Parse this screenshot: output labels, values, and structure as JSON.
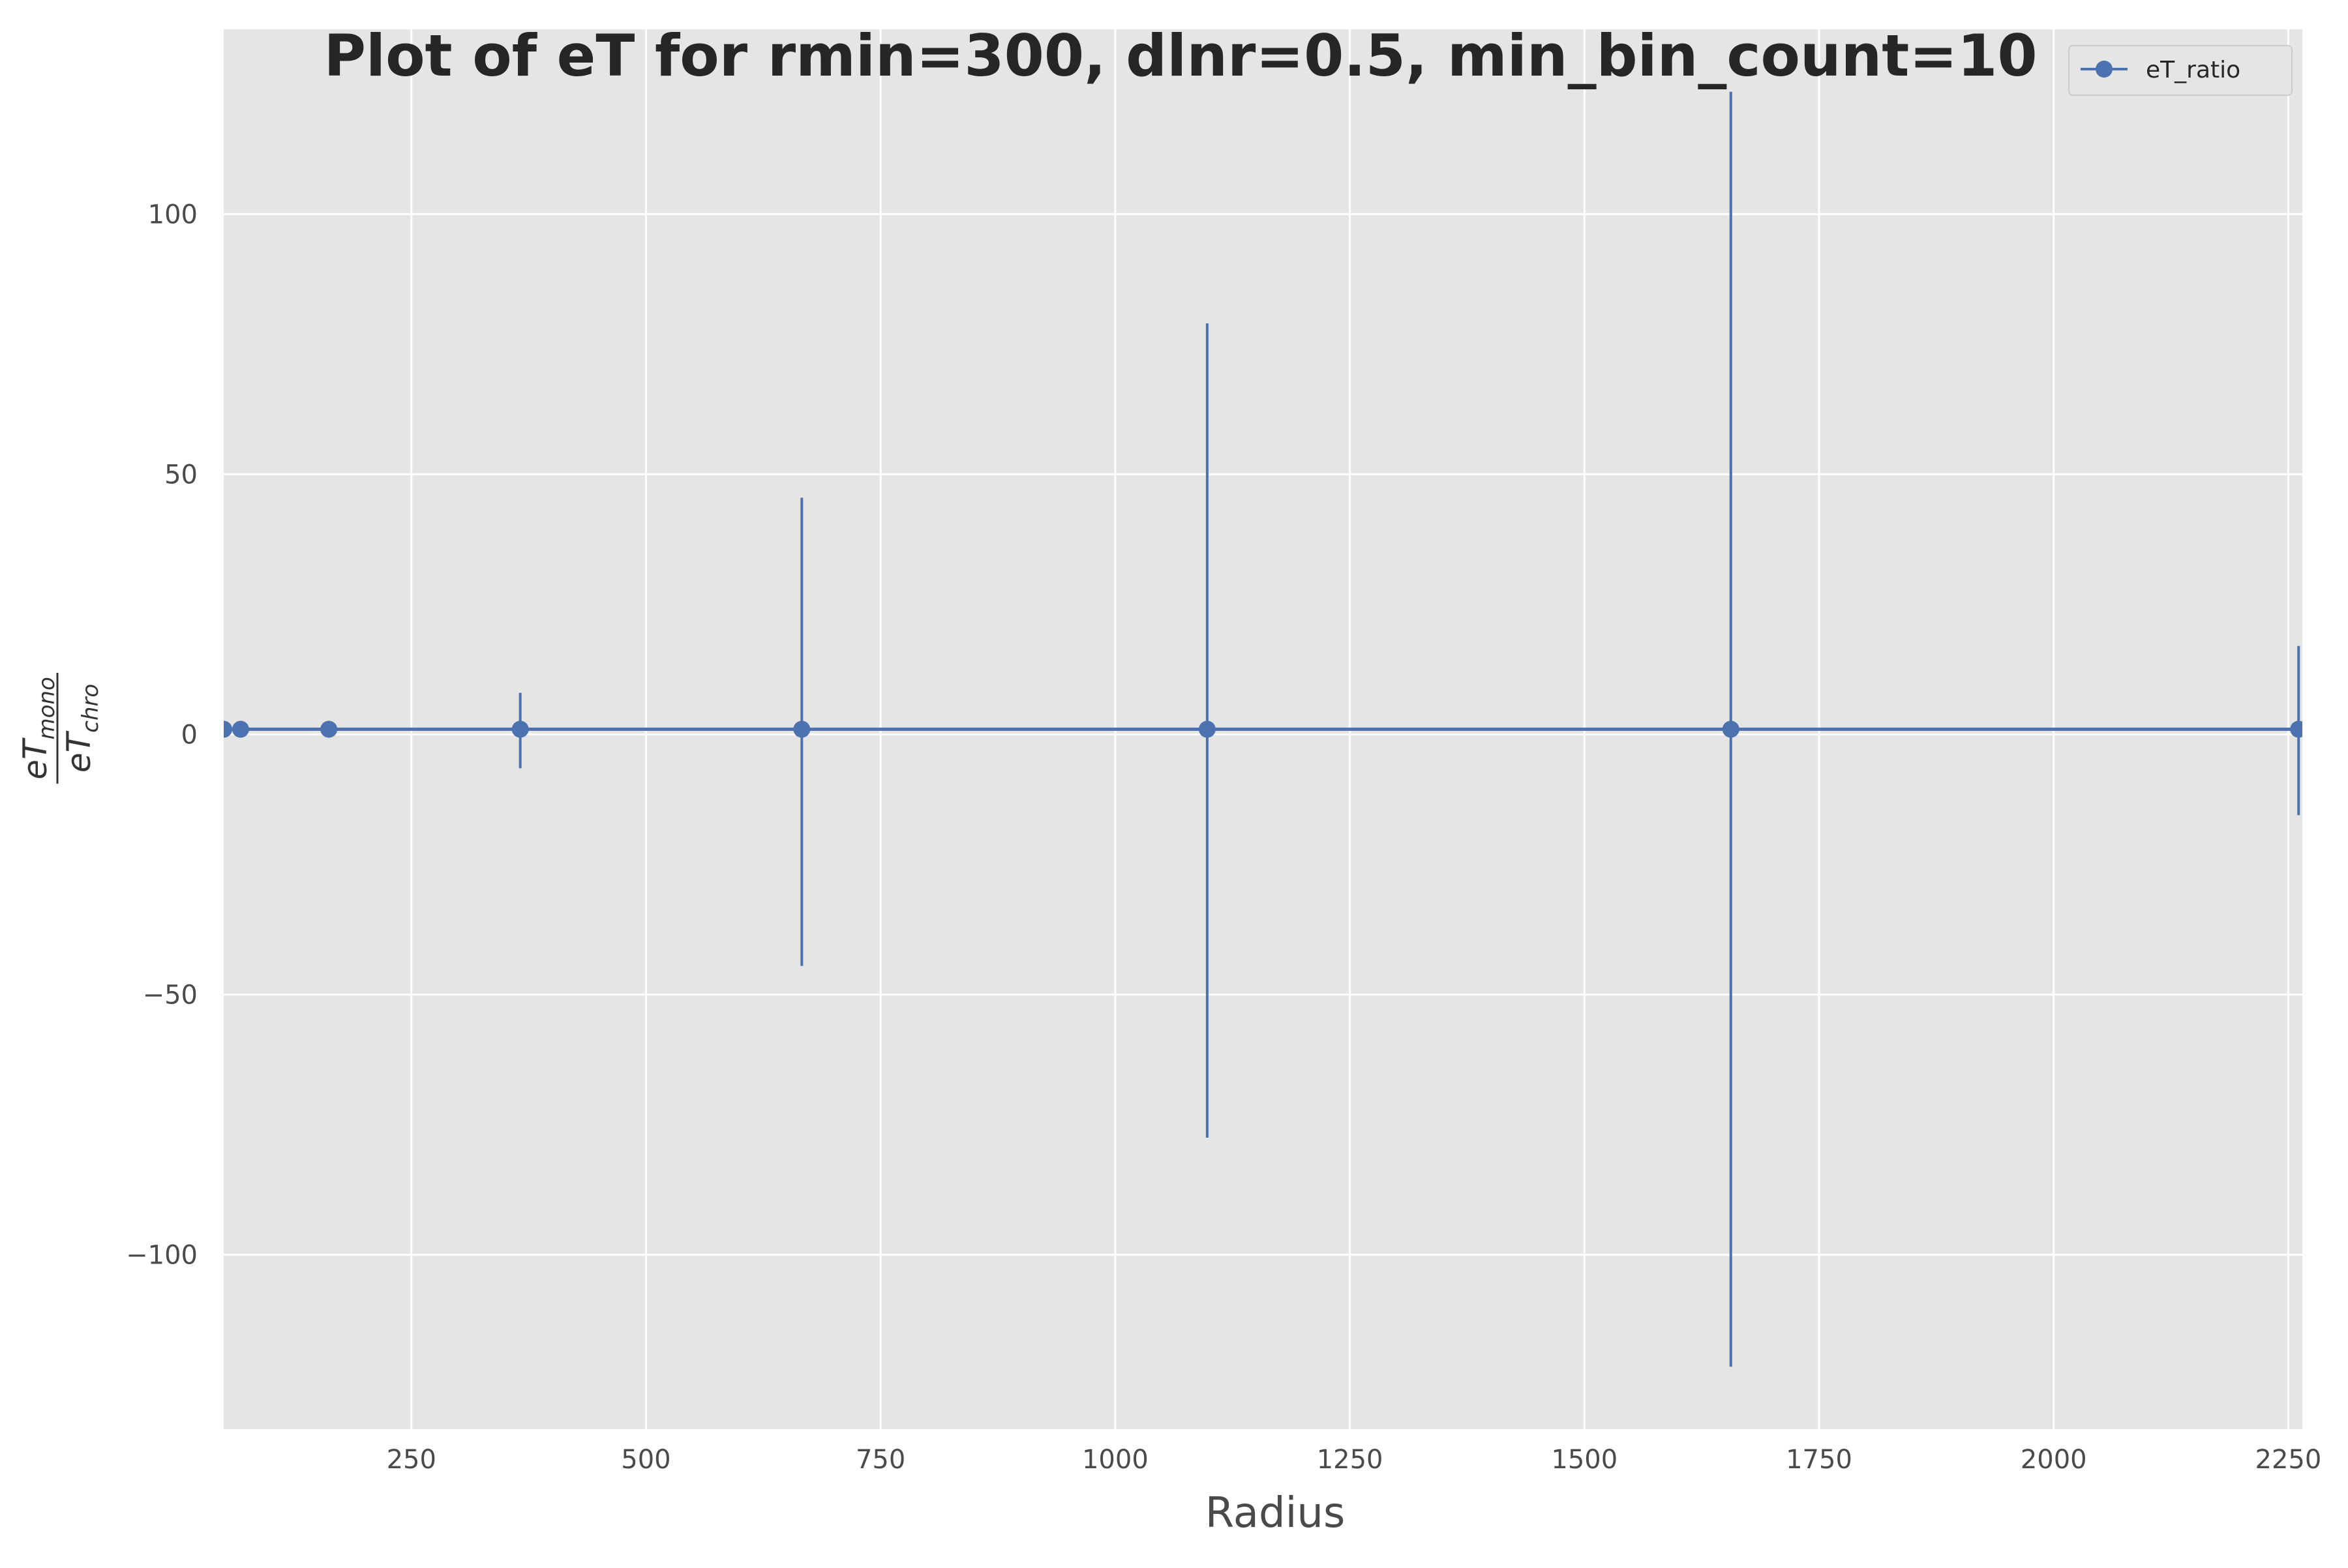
{
  "chart_data": {
    "type": "line",
    "title": "Plot of eT for rmin=300, dlnr=0.5, min_bin_count=10",
    "xlabel": "Radius",
    "ylabel": {
      "main_top": "eT",
      "sub_top": "mono",
      "main_bottom": "eT",
      "sub_bottom": "chro"
    },
    "xlim": [
      50,
      2265
    ],
    "ylim": [
      -133.5,
      135.5
    ],
    "x_ticks": [
      250,
      500,
      750,
      1000,
      1250,
      1500,
      1750,
      2000,
      2250
    ],
    "x_tick_labels": [
      "250",
      "500",
      "750",
      "1000",
      "1250",
      "1500",
      "1750",
      "2000",
      "2250"
    ],
    "y_ticks": [
      100,
      50,
      0,
      -50,
      -100
    ],
    "y_tick_labels": [
      "100",
      "50",
      "0",
      "−50",
      "−100"
    ],
    "grid": true,
    "legend": "top-right",
    "colors": {
      "series": "#4c72b0",
      "background": "#e5e5e5",
      "grid": "#ffffff"
    },
    "series": [
      {
        "name": "eT_ratio",
        "x": [
          50,
          68,
          162,
          366,
          666,
          1098,
          1656,
          2261
        ],
        "y": [
          1,
          1,
          1,
          1,
          1,
          1,
          1,
          1
        ],
        "yerr_low": [
          0.5,
          0.5,
          0.5,
          -6.5,
          -44.5,
          -77.5,
          -121.5,
          -15.5
        ],
        "yerr_high": [
          1.5,
          1.5,
          1.5,
          8,
          45.5,
          79,
          123.5,
          17
        ]
      }
    ]
  }
}
